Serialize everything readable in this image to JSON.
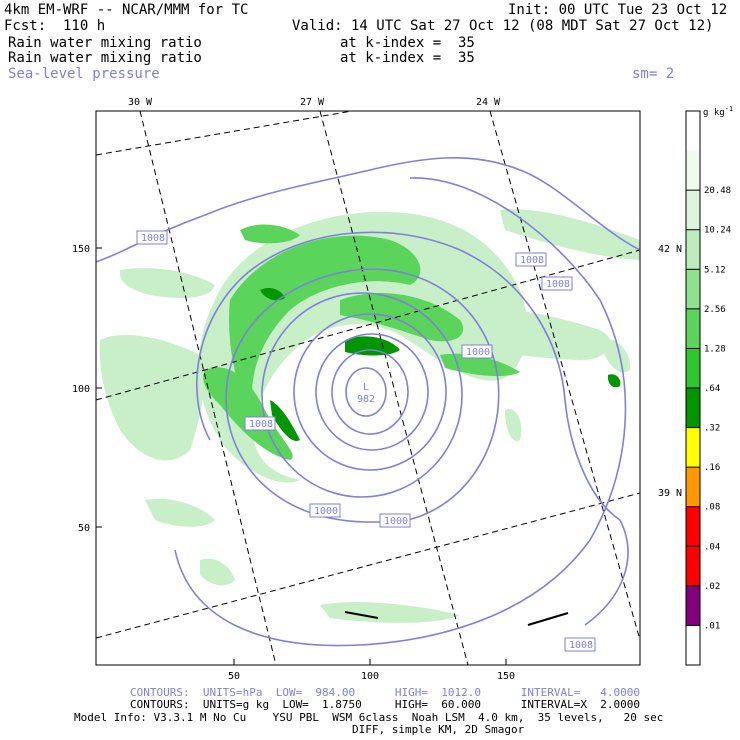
{
  "header": {
    "title_left": "4km EM-WRF -- NCAR/MMM for TC",
    "init": "Init: 00 UTC Tue 23 Oct 12",
    "fcst": "Fcst:  110 h",
    "valid": "Valid: 14 UTC Sat 27 Oct 12 (08 MDT Sat 27 Oct 12)",
    "field1_name": "Rain water mixing ratio",
    "field1_level": "at k-index =  35",
    "field2_name": "Rain water mixing ratio",
    "field2_level": "at k-index =  35",
    "field3_name": "Sea-level pressure",
    "smooth": "sm= 2"
  },
  "map": {
    "lon_labels": [
      "30 W",
      "27 W",
      "24 W"
    ],
    "lat_labels": [
      "42 N",
      "39 N"
    ],
    "x_ticks": [
      "50",
      "100",
      "150"
    ],
    "y_ticks": [
      "150",
      "100",
      "50"
    ],
    "low_letter": "L",
    "low_value": "982",
    "isobar_labels": [
      "1008",
      "1008",
      "1008",
      "1000",
      "1008",
      "1000",
      "1000",
      "1008"
    ]
  },
  "colorbar": {
    "unit": "g kg",
    "unit_sup": "-1",
    "levels": [
      "20.48",
      "10.24",
      "5.12",
      "2.56",
      "1.28",
      ".64",
      ".32",
      ".16",
      ".08",
      ".04",
      ".02",
      ".01"
    ],
    "colors": [
      "#ffffff",
      "#f0fbf0",
      "#dcf5dc",
      "#bdecbd",
      "#8fe08f",
      "#5ad45a",
      "#2ec82e",
      "#009600",
      "#ffff00",
      "#ff9900",
      "#ff0000",
      "#ff0000",
      "#800080",
      "#ffffff"
    ]
  },
  "footer": {
    "contours1": "CONTOURS:  UNITS=hPa  LOW=  984.00      HIGH=  1012.0      INTERVAL=   4.0000",
    "contours2": "CONTOURS:  UNITS=g kg  LOW=  1.8750     HIGH=  60.000      INTERVAL=X  2.0000",
    "model_info": "Model Info: V3.3.1 M No Cu    YSU PBL  WSM 6class  Noah LSM  4.0 km,  35 levels,   20 sec",
    "model_info2": "DIFF, simple KM, 2D Smagor"
  }
}
